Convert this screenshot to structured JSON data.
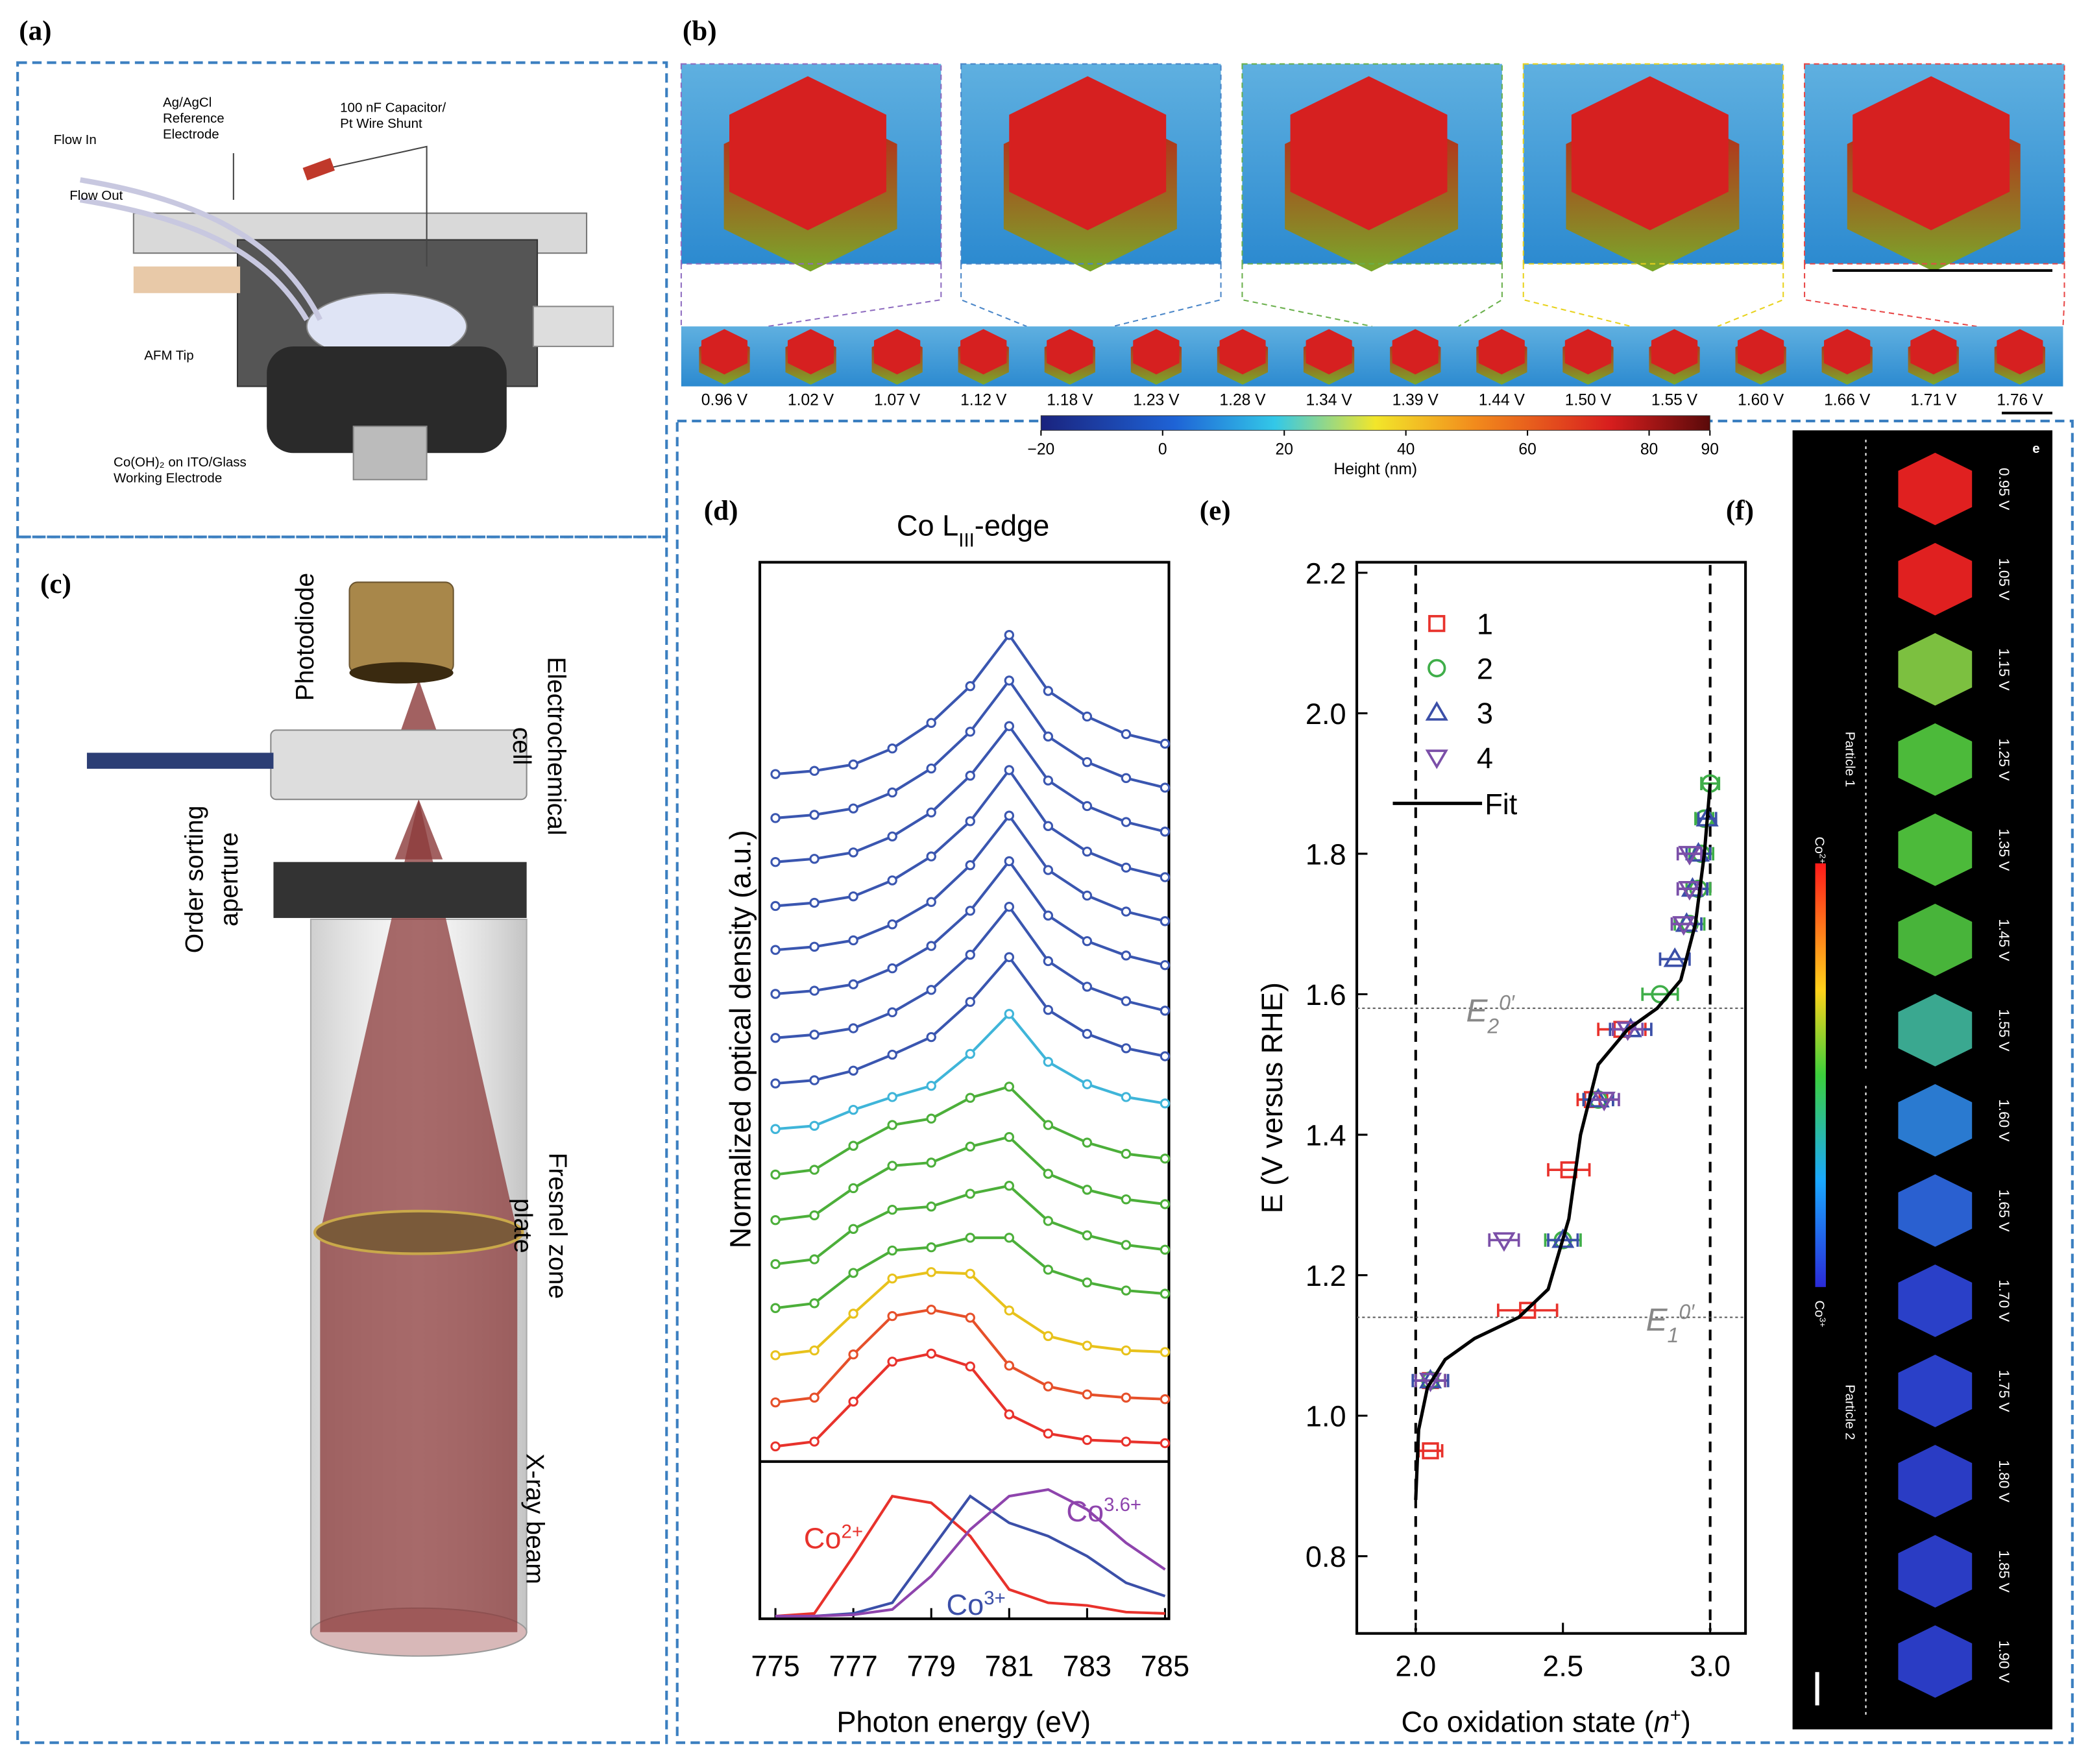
{
  "panels": {
    "a": {
      "label": "(a)",
      "flow_in": "Flow In",
      "flow_out": "Flow Out",
      "reference": [
        "Ag/AgCl",
        "Reference",
        "Electrode"
      ],
      "capacitor": [
        "100 nF Capacitor/",
        "Pt Wire Shunt"
      ],
      "afm_tip": "AFM Tip",
      "working": [
        "Co(OH)₂ on ITO/Glass",
        "Working Electrode"
      ]
    },
    "b": {
      "label": "(b)",
      "voltages": [
        "0.96 V",
        "1.02 V",
        "1.07 V",
        "1.12 V",
        "1.18 V",
        "1.23 V",
        "1.28 V",
        "1.34 V",
        "1.39 V",
        "1.44 V",
        "1.50 V",
        "1.55 V",
        "1.60 V",
        "1.66 V",
        "1.71 V",
        "1.76 V"
      ],
      "colorbar": {
        "label": "Height (nm)",
        "lim": [
          -20,
          90
        ],
        "ticks": [
          {
            "value": -20,
            "label": "−20"
          },
          0,
          20,
          40,
          60,
          80,
          90
        ]
      }
    },
    "c": {
      "label": "(c)",
      "photodiode": "Photodiode",
      "cell": [
        "Electrochemical",
        "cell"
      ],
      "aperture": [
        "Order sorting",
        "aperture"
      ],
      "zone_plate": [
        "Fresnel zone",
        "plate"
      ],
      "beam": "X-ray beam"
    },
    "f": {
      "label": "(f)",
      "corner": "e",
      "voltages": [
        "0.95 V",
        "1.05 V",
        "1.15 V",
        "1.25 V",
        "1.35 V",
        "1.45 V",
        "1.55 V",
        "1.60 V",
        "1.65 V",
        "1.70 V",
        "1.75 V",
        "1.80 V",
        "1.85 V",
        "1.90 V"
      ],
      "particle_1": "Particle 1",
      "particle_2": "Particle 2",
      "co2": {
        "base": "Co",
        "sup": "2+"
      },
      "co3": {
        "base": "Co",
        "sup": "3+"
      }
    }
  },
  "chart_data": [
    {
      "type": "line",
      "panel_label": "(d)",
      "title": {
        "base": "Co L",
        "sub": "III",
        "rest": "-edge"
      },
      "x_label": "Photon energy (eV)",
      "y_label": "Normalized optical density (a.u.)",
      "xlim": [
        774.6,
        785.1
      ],
      "xticks": [
        775,
        777,
        779,
        781,
        783,
        785
      ],
      "x": [
        775,
        776,
        777,
        778,
        779,
        780,
        781,
        782,
        783,
        784,
        785
      ],
      "series": [
        {
          "color": "#e8322c",
          "values": [
            0.02,
            0.05,
            0.3,
            0.55,
            0.6,
            0.52,
            0.22,
            0.1,
            0.06,
            0.05,
            0.04
          ]
        },
        {
          "color": "#e6502a",
          "values": [
            0.02,
            0.05,
            0.32,
            0.56,
            0.6,
            0.55,
            0.25,
            0.12,
            0.07,
            0.05,
            0.04
          ]
        },
        {
          "color": "#e8c21c",
          "values": [
            0.04,
            0.07,
            0.3,
            0.52,
            0.56,
            0.55,
            0.32,
            0.16,
            0.1,
            0.07,
            0.06
          ]
        },
        {
          "color": "#4caf3a",
          "values": [
            0.06,
            0.09,
            0.28,
            0.42,
            0.44,
            0.5,
            0.5,
            0.3,
            0.22,
            0.17,
            0.15
          ]
        },
        {
          "color": "#4caf3a",
          "values": [
            0.06,
            0.09,
            0.28,
            0.4,
            0.42,
            0.5,
            0.55,
            0.33,
            0.24,
            0.18,
            0.15
          ]
        },
        {
          "color": "#4caf3a",
          "values": [
            0.06,
            0.09,
            0.26,
            0.4,
            0.42,
            0.52,
            0.58,
            0.35,
            0.25,
            0.19,
            0.16
          ]
        },
        {
          "color": "#4caf3a",
          "values": [
            0.07,
            0.1,
            0.25,
            0.38,
            0.42,
            0.55,
            0.62,
            0.38,
            0.27,
            0.2,
            0.17
          ]
        },
        {
          "color": "#3fb5d9",
          "values": [
            0.08,
            0.1,
            0.2,
            0.28,
            0.35,
            0.55,
            0.8,
            0.5,
            0.36,
            0.28,
            0.24
          ]
        },
        {
          "color": "#3a56b0",
          "values": [
            0.09,
            0.11,
            0.17,
            0.27,
            0.38,
            0.6,
            0.88,
            0.55,
            0.4,
            0.31,
            0.26
          ]
        },
        {
          "color": "#3a56b0",
          "values": [
            0.1,
            0.12,
            0.16,
            0.26,
            0.4,
            0.62,
            0.92,
            0.58,
            0.42,
            0.33,
            0.27
          ]
        },
        {
          "color": "#3a56b0",
          "values": [
            0.1,
            0.12,
            0.16,
            0.26,
            0.4,
            0.62,
            0.93,
            0.59,
            0.43,
            0.34,
            0.28
          ]
        },
        {
          "color": "#3a56b0",
          "values": [
            0.1,
            0.12,
            0.16,
            0.26,
            0.4,
            0.63,
            0.94,
            0.6,
            0.44,
            0.34,
            0.28
          ]
        },
        {
          "color": "#3a56b0",
          "values": [
            0.1,
            0.12,
            0.16,
            0.26,
            0.41,
            0.63,
            0.95,
            0.6,
            0.44,
            0.34,
            0.28
          ]
        },
        {
          "color": "#3a56b0",
          "values": [
            0.1,
            0.12,
            0.16,
            0.26,
            0.41,
            0.64,
            0.95,
            0.61,
            0.45,
            0.35,
            0.29
          ]
        },
        {
          "color": "#3a56b0",
          "values": [
            0.1,
            0.12,
            0.16,
            0.26,
            0.41,
            0.64,
            0.96,
            0.61,
            0.45,
            0.35,
            0.29
          ]
        },
        {
          "color": "#3a56b0",
          "values": [
            0.1,
            0.12,
            0.16,
            0.26,
            0.42,
            0.65,
            0.97,
            0.62,
            0.46,
            0.35,
            0.29
          ]
        }
      ],
      "reference_spectra": [
        {
          "name": {
            "base": "Co",
            "sup": "2+"
          },
          "color": "#e8322c",
          "values": [
            0.0,
            0.02,
            0.45,
            0.9,
            0.85,
            0.6,
            0.2,
            0.1,
            0.08,
            0.03,
            0.02
          ]
        },
        {
          "name": {
            "base": "Co",
            "sup": "3+"
          },
          "color": "#3b4fa8",
          "values": [
            0.0,
            0.0,
            0.02,
            0.1,
            0.5,
            0.9,
            0.7,
            0.6,
            0.45,
            0.25,
            0.15
          ]
        },
        {
          "name": {
            "base": "Co",
            "sup": "3.6+"
          },
          "color": "#8e44ad",
          "values": [
            0.0,
            0.0,
            0.01,
            0.05,
            0.3,
            0.65,
            0.9,
            0.95,
            0.8,
            0.55,
            0.35
          ]
        }
      ]
    },
    {
      "type": "scatter",
      "panel_label": "(e)",
      "y_label": "E (V versus RHE)",
      "x_label": {
        "pre": "Co oxidation state (",
        "var": "n",
        "sup": "+",
        "post": ")"
      },
      "xlim": [
        1.8,
        3.12
      ],
      "xticks": [
        {
          "value": 2,
          "label": "2.0"
        },
        2.5,
        {
          "value": 3,
          "label": "3.0"
        }
      ],
      "ylim": [
        0.69,
        2.215
      ],
      "yticks": [
        0.8,
        {
          "value": 1,
          "label": "1.0"
        },
        1.2,
        1.4,
        1.6,
        1.8,
        {
          "value": 2,
          "label": "2.0"
        },
        2.2
      ],
      "legend": "upper left",
      "series": [
        {
          "name": "1",
          "color": "#e8322c",
          "marker": "square",
          "x": [
            2.05,
            2.05,
            2.38,
            2.52,
            2.6,
            2.7
          ],
          "values": [
            0.95,
            1.05,
            1.15,
            1.35,
            1.45,
            1.55
          ],
          "xerr": [
            0.04,
            0.05,
            0.1,
            0.07,
            0.05,
            0.08
          ]
        },
        {
          "name": "2",
          "color": "#3fae49",
          "marker": "circle",
          "x": [
            2.05,
            2.5,
            2.62,
            2.83,
            2.93,
            2.96,
            2.97,
            2.98,
            3.0
          ],
          "values": [
            1.05,
            1.25,
            1.45,
            1.6,
            1.7,
            1.75,
            1.8,
            1.85,
            1.9
          ],
          "xerr": [
            0.05,
            0.06,
            0.05,
            0.06,
            0.05,
            0.04,
            0.04,
            0.03,
            0.03
          ]
        },
        {
          "name": "3",
          "color": "#3b4fa8",
          "marker": "triangle",
          "x": [
            2.05,
            2.5,
            2.62,
            2.73,
            2.88,
            2.92,
            2.94,
            2.96,
            2.99
          ],
          "values": [
            1.05,
            1.25,
            1.45,
            1.55,
            1.65,
            1.7,
            1.75,
            1.8,
            1.85
          ],
          "xerr": [
            0.06,
            0.05,
            0.05,
            0.07,
            0.05,
            0.05,
            0.05,
            0.04,
            0.03
          ]
        },
        {
          "name": "4",
          "color": "#7b4fa8",
          "marker": "triangle-down",
          "x": [
            2.05,
            2.3,
            2.64,
            2.72,
            2.91,
            2.93,
            2.93
          ],
          "values": [
            1.05,
            1.25,
            1.45,
            1.55,
            1.7,
            1.75,
            1.8
          ],
          "xerr": [
            0.05,
            0.05,
            0.05,
            0.05,
            0.04,
            0.04,
            0.04
          ]
        },
        {
          "name": "Fit",
          "color": "#000000",
          "marker": "line",
          "x": [
            2.0,
            2.01,
            2.04,
            2.1,
            2.2,
            2.35,
            2.45,
            2.52,
            2.56,
            2.62,
            2.72,
            2.82,
            2.9,
            2.95,
            2.98,
            3.0
          ],
          "values": [
            0.88,
            0.98,
            1.04,
            1.08,
            1.11,
            1.14,
            1.18,
            1.28,
            1.4,
            1.5,
            1.55,
            1.58,
            1.62,
            1.7,
            1.8,
            1.9
          ]
        }
      ],
      "hlines": [
        {
          "value": 1.14,
          "label": {
            "base": "E",
            "sub": "1",
            "sup": "0′"
          }
        },
        {
          "value": 1.58,
          "label": {
            "base": "E",
            "sub": "2",
            "sup": "0′"
          }
        }
      ],
      "vlines": [
        2.0,
        3.0
      ]
    }
  ]
}
